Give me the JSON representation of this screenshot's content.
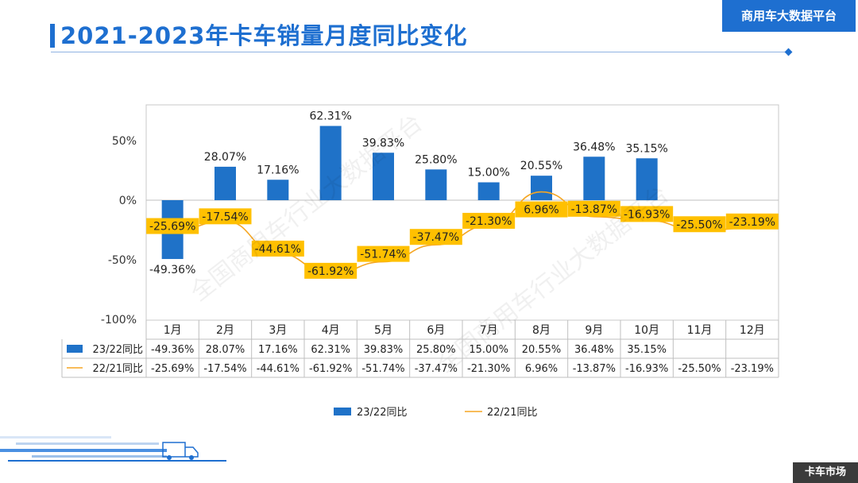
{
  "header": {
    "title": "2021-2023年卡车销量月度同比变化",
    "brand": "商用车大数据平台"
  },
  "footer": {
    "badge": "卡车市场"
  },
  "watermark": "全国商用车行业大数据平台",
  "colors": {
    "accent": "#1e6fd0",
    "bar": "#1f72c8",
    "line": "#f5a623",
    "label_bg": "#ffc000"
  },
  "chart_data": {
    "type": "bar",
    "categories": [
      "1月",
      "2月",
      "3月",
      "4月",
      "5月",
      "6月",
      "7月",
      "8月",
      "9月",
      "10月",
      "11月",
      "12月"
    ],
    "y_ticks": [
      "50%",
      "0%",
      "-50%",
      "-100%"
    ],
    "ylim": [
      -100,
      70
    ],
    "series": [
      {
        "name": "23/22同比",
        "type": "bar",
        "values": [
          -49.36,
          28.07,
          17.16,
          62.31,
          39.83,
          25.8,
          15.0,
          20.55,
          36.48,
          35.15,
          null,
          null
        ],
        "labels": [
          "-49.36%",
          "28.07%",
          "17.16%",
          "62.31%",
          "39.83%",
          "25.80%",
          "15.00%",
          "20.55%",
          "36.48%",
          "35.15%",
          "",
          ""
        ]
      },
      {
        "name": "22/21同比",
        "type": "line",
        "values": [
          -25.69,
          -17.54,
          -44.61,
          -61.92,
          -51.74,
          -37.47,
          -21.3,
          6.96,
          -13.87,
          -16.93,
          -25.5,
          -23.19
        ],
        "labels": [
          "-25.69%",
          "-17.54%",
          "-44.61%",
          "-61.92%",
          "-51.74%",
          "-37.47%",
          "-21.30%",
          "6.96%",
          "-13.87%",
          "-16.93%",
          "-25.50%",
          "-23.19%"
        ]
      }
    ]
  }
}
